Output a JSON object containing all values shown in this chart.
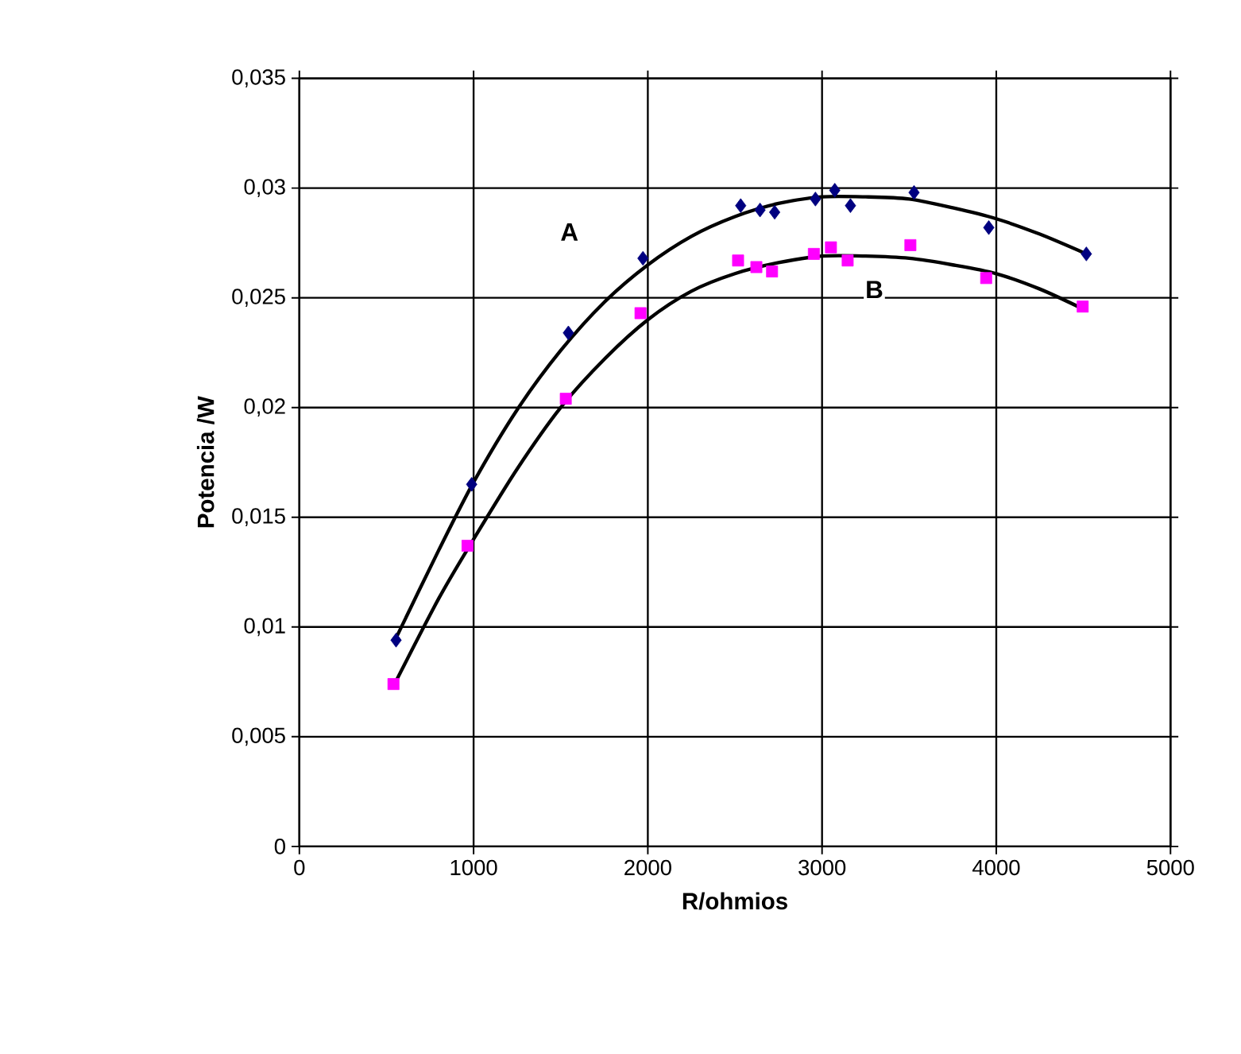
{
  "chart_data": {
    "type": "scatter",
    "xlabel": "R/ohmios",
    "ylabel": "Potencia /W",
    "xlim": [
      0,
      5000
    ],
    "xticks": [
      0,
      1000,
      2000,
      3000,
      4000,
      5000
    ],
    "ylim": [
      0,
      0.035
    ],
    "yticks": [
      0,
      {
        "value": 0.005,
        "label": "0,005"
      },
      {
        "value": 0.01,
        "label": "0,01"
      },
      {
        "value": 0.015,
        "label": "0,015"
      },
      {
        "value": 0.02,
        "label": "0,02"
      },
      {
        "value": 0.025,
        "label": "0,025"
      },
      {
        "value": 0.03,
        "label": "0,03"
      },
      {
        "value": 0.035,
        "label": "0,035"
      }
    ],
    "grid": true,
    "series": [
      {
        "type": "line",
        "color": "#000000",
        "marker": "none",
        "x": [
          555,
          800,
          1000,
          1250,
          1500,
          1750,
          2000,
          2250,
          2500,
          2750,
          3000,
          3250,
          3500,
          3750,
          4000,
          4250,
          4517
        ],
        "values": [
          0.0095,
          0.0135,
          0.0166,
          0.0199,
          0.0226,
          0.0248,
          0.0265,
          0.0278,
          0.0287,
          0.0293,
          0.0296,
          0.0296,
          0.0295,
          0.0291,
          0.0286,
          0.0279,
          0.027
        ]
      },
      {
        "type": "line",
        "color": "#000000",
        "marker": "none",
        "x": [
          540,
          800,
          1000,
          1250,
          1500,
          1750,
          2000,
          2250,
          2500,
          2750,
          3000,
          3250,
          3500,
          3750,
          4000,
          4250,
          4496
        ],
        "values": [
          0.0073,
          0.0113,
          0.014,
          0.0172,
          0.02,
          0.0222,
          0.024,
          0.0253,
          0.0261,
          0.0266,
          0.0269,
          0.0269,
          0.0268,
          0.0265,
          0.0261,
          0.0254,
          0.0245
        ]
      },
      {
        "color": "#000080",
        "marker": "diamond",
        "x": [
          555,
          989,
          1544,
          1972,
          2533,
          2644,
          2728,
          2962,
          3073,
          3163,
          3528,
          3957,
          4517
        ],
        "values": [
          0.0094,
          0.0165,
          0.0234,
          0.0268,
          0.0292,
          0.029,
          0.0289,
          0.0295,
          0.0299,
          0.0292,
          0.0298,
          0.0282,
          0.027
        ]
      },
      {
        "color": "#ff00ff",
        "marker": "square",
        "x": [
          540,
          965,
          1529,
          1958,
          2518,
          2623,
          2713,
          2953,
          3051,
          3147,
          3507,
          3942,
          4496
        ],
        "values": [
          0.0074,
          0.0137,
          0.0204,
          0.0243,
          0.0267,
          0.0264,
          0.0262,
          0.027,
          0.0273,
          0.0267,
          0.0274,
          0.0259,
          0.0246
        ]
      }
    ],
    "annotations": [
      "A",
      "B"
    ]
  }
}
